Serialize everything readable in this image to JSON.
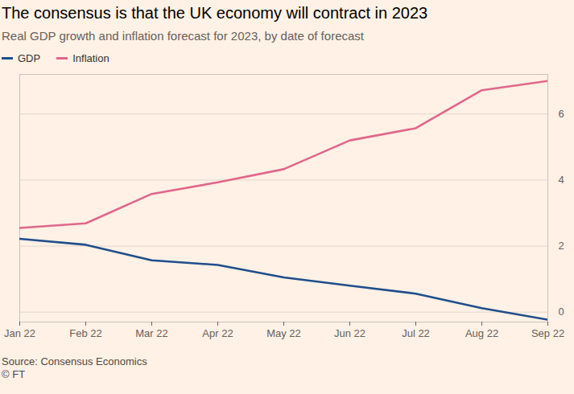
{
  "chart_data": {
    "type": "line",
    "title": "The consensus is that the UK economy will contract in 2023",
    "subtitle": "Real GDP growth and inflation forecast for 2023, by date of forecast",
    "categories": [
      "Jan 22",
      "Feb 22",
      "Mar 22",
      "Apr 22",
      "May 22",
      "Jun 22",
      "Jul 22",
      "Aug 22",
      "Sep 22"
    ],
    "series": [
      {
        "name": "GDP",
        "color": "#1f4e8c",
        "values": [
          2.22,
          2.04,
          1.57,
          1.43,
          1.05,
          0.8,
          0.56,
          0.12,
          -0.23
        ]
      },
      {
        "name": "Inflation",
        "color": "#e0678c",
        "values": [
          2.55,
          2.69,
          3.58,
          3.93,
          4.33,
          5.2,
          5.57,
          6.72,
          7.0
        ]
      }
    ],
    "ylim": [
      -0.3,
      7.2
    ],
    "yticks": [
      0,
      2,
      4,
      6
    ],
    "grid": true,
    "legend": "top-left",
    "source": "Source: Consensus Economics",
    "credit": "© FT"
  }
}
